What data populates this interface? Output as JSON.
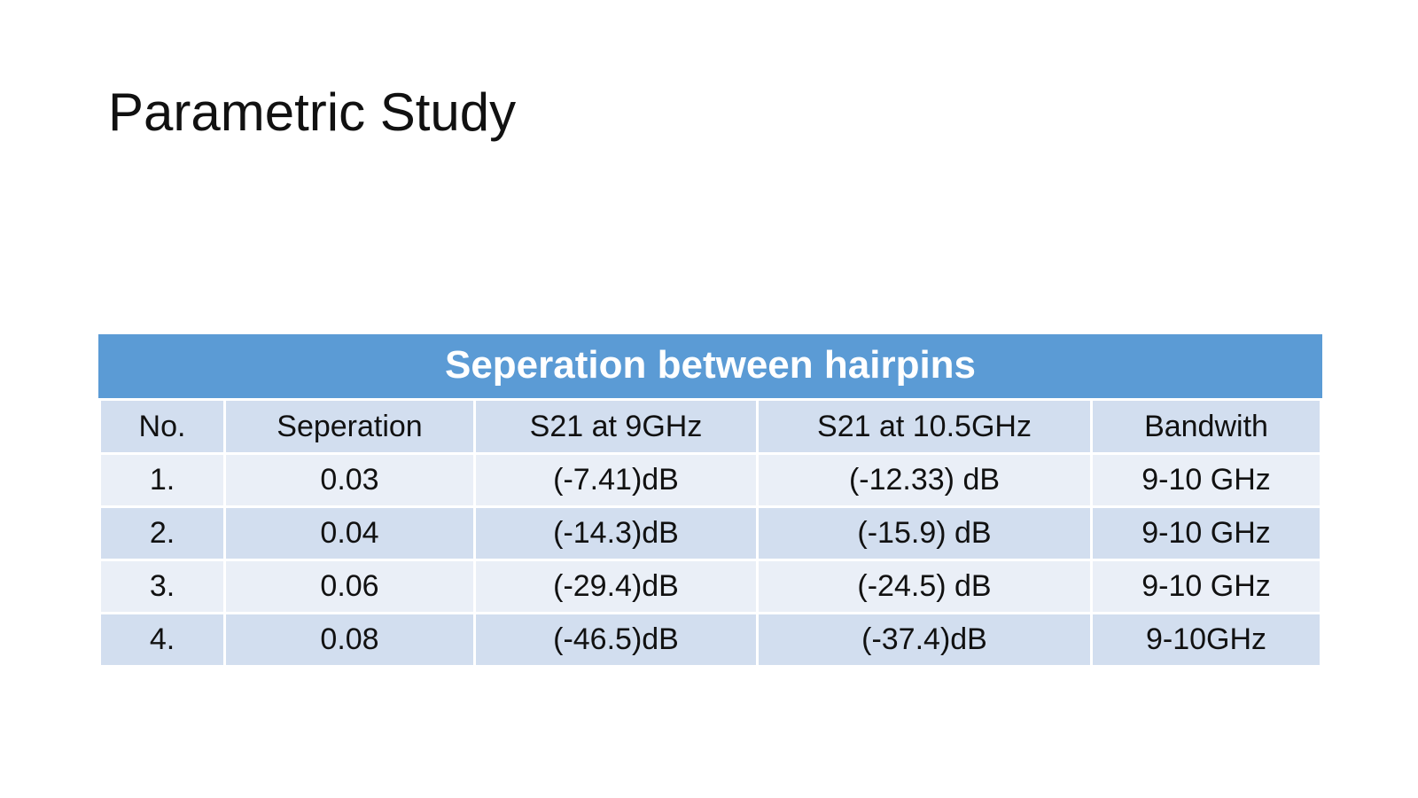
{
  "slide": {
    "title": "Parametric Study"
  },
  "table": {
    "caption": "Seperation between hairpins",
    "header": [
      "No.",
      "Seperation",
      "S21 at 9GHz",
      "S21 at 10.5GHz",
      "Bandwith"
    ],
    "rows": [
      [
        "1.",
        "0.03",
        "(-7.41)dB",
        "(-12.33) dB",
        "9-10 GHz"
      ],
      [
        "2.",
        "0.04",
        "(-14.3)dB",
        "(-15.9) dB",
        "9-10 GHz"
      ],
      [
        "3.",
        "0.06",
        "(-29.4)dB",
        "(-24.5) dB",
        "9-10 GHz"
      ],
      [
        "4.",
        "0.08",
        "(-46.5)dB",
        "(-37.4)dB",
        "9-10GHz"
      ]
    ]
  }
}
